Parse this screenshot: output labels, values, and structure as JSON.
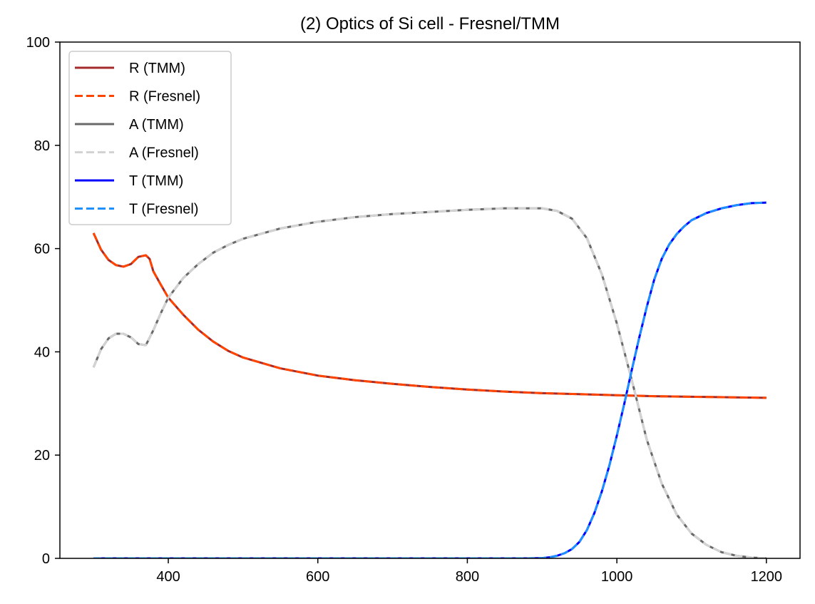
{
  "chart_data": {
    "type": "line",
    "title": "(2) Optics of Si cell - Fresnel/TMM",
    "xlabel": "",
    "ylabel": "",
    "xlim": [
      255,
      1245
    ],
    "ylim": [
      0,
      100
    ],
    "x_ticks": [
      400,
      600,
      800,
      1000,
      1200
    ],
    "y_ticks": [
      0,
      20,
      40,
      60,
      80,
      100
    ],
    "grid": false,
    "legend_position": "top-left",
    "series": [
      {
        "name": "R (TMM)",
        "color": "#a52a2a",
        "style": "solid",
        "x": [
          300,
          310,
          320,
          330,
          340,
          350,
          360,
          370,
          375,
          380,
          390,
          400,
          420,
          440,
          460,
          480,
          500,
          550,
          600,
          650,
          700,
          750,
          800,
          850,
          900,
          950,
          1000,
          1050,
          1100,
          1150,
          1200
        ],
        "y": [
          63,
          59.8,
          57.8,
          56.8,
          56.5,
          57,
          58.4,
          58.7,
          58,
          55.6,
          53,
          50.5,
          47.2,
          44.3,
          42,
          40.2,
          38.9,
          36.8,
          35.4,
          34.5,
          33.8,
          33.2,
          32.7,
          32.3,
          32.0,
          31.8,
          31.6,
          31.4,
          31.3,
          31.2,
          31.1
        ]
      },
      {
        "name": "R (Fresnel)",
        "color": "#ff4500",
        "style": "dashed",
        "x": [
          300,
          310,
          320,
          330,
          340,
          350,
          360,
          370,
          375,
          380,
          390,
          400,
          420,
          440,
          460,
          480,
          500,
          550,
          600,
          650,
          700,
          750,
          800,
          850,
          900,
          950,
          1000,
          1050,
          1100,
          1150,
          1200
        ],
        "y": [
          63,
          59.8,
          57.8,
          56.8,
          56.5,
          57,
          58.4,
          58.7,
          58,
          55.6,
          53,
          50.5,
          47.2,
          44.3,
          42,
          40.2,
          38.9,
          36.8,
          35.4,
          34.5,
          33.8,
          33.2,
          32.7,
          32.3,
          32.0,
          31.8,
          31.6,
          31.4,
          31.3,
          31.2,
          31.1
        ]
      },
      {
        "name": "A (TMM)",
        "color": "#696969",
        "style": "solid",
        "x": [
          300,
          310,
          320,
          330,
          340,
          350,
          360,
          370,
          380,
          390,
          400,
          420,
          440,
          460,
          480,
          500,
          550,
          600,
          650,
          700,
          750,
          800,
          850,
          900,
          920,
          940,
          960,
          980,
          1000,
          1020,
          1040,
          1060,
          1080,
          1100,
          1120,
          1140,
          1160,
          1180,
          1200
        ],
        "y": [
          37,
          40.5,
          42.6,
          43.5,
          43.5,
          42.8,
          41.5,
          41.3,
          44.2,
          47.5,
          50.5,
          54.3,
          57,
          59.2,
          60.7,
          61.9,
          63.9,
          65.2,
          66.1,
          66.7,
          67.1,
          67.5,
          67.8,
          67.8,
          67.3,
          65.8,
          62,
          55,
          45.5,
          34.5,
          23,
          14.5,
          8.5,
          4.8,
          2.6,
          1.2,
          0.5,
          0.15,
          0
        ]
      },
      {
        "name": "A (Fresnel)",
        "color": "#d3d3d3",
        "style": "dashed",
        "x": [
          300,
          310,
          320,
          330,
          340,
          350,
          360,
          370,
          380,
          390,
          400,
          420,
          440,
          460,
          480,
          500,
          550,
          600,
          650,
          700,
          750,
          800,
          850,
          900,
          920,
          940,
          960,
          980,
          1000,
          1020,
          1040,
          1060,
          1080,
          1100,
          1120,
          1140,
          1160,
          1180,
          1200
        ],
        "y": [
          37,
          40.5,
          42.6,
          43.5,
          43.5,
          42.8,
          41.5,
          41.3,
          44.2,
          47.5,
          50.5,
          54.3,
          57,
          59.2,
          60.7,
          61.9,
          63.9,
          65.2,
          66.1,
          66.7,
          67.1,
          67.5,
          67.8,
          67.8,
          67.3,
          65.8,
          62,
          55,
          45.5,
          34.5,
          23,
          14.5,
          8.5,
          4.8,
          2.6,
          1.2,
          0.5,
          0.15,
          0
        ]
      },
      {
        "name": "T (TMM)",
        "color": "#0000ff",
        "style": "solid",
        "x": [
          300,
          400,
          500,
          600,
          700,
          800,
          880,
          900,
          910,
          920,
          930,
          940,
          950,
          960,
          970,
          980,
          990,
          1000,
          1010,
          1020,
          1030,
          1040,
          1050,
          1060,
          1070,
          1080,
          1090,
          1100,
          1120,
          1140,
          1160,
          1180,
          1200
        ],
        "y": [
          0,
          0,
          0,
          0,
          0,
          0,
          0,
          0.05,
          0.2,
          0.5,
          1.0,
          1.8,
          3.2,
          5.5,
          8.8,
          13,
          18,
          23.8,
          30,
          36.5,
          42.8,
          48.7,
          54,
          58,
          60.8,
          62.8,
          64.3,
          65.5,
          66.9,
          67.8,
          68.4,
          68.8,
          68.9
        ]
      },
      {
        "name": "T (Fresnel)",
        "color": "#1e90ff",
        "style": "dashed",
        "x": [
          300,
          400,
          500,
          600,
          700,
          800,
          880,
          900,
          910,
          920,
          930,
          940,
          950,
          960,
          970,
          980,
          990,
          1000,
          1010,
          1020,
          1030,
          1040,
          1050,
          1060,
          1070,
          1080,
          1090,
          1100,
          1120,
          1140,
          1160,
          1180,
          1200
        ],
        "y": [
          0,
          0,
          0,
          0,
          0,
          0,
          0,
          0.05,
          0.2,
          0.5,
          1.0,
          1.8,
          3.2,
          5.5,
          8.8,
          13,
          18,
          23.8,
          30,
          36.5,
          42.8,
          48.7,
          54,
          58,
          60.8,
          62.8,
          64.3,
          65.5,
          66.9,
          67.8,
          68.4,
          68.8,
          68.9
        ]
      }
    ]
  }
}
